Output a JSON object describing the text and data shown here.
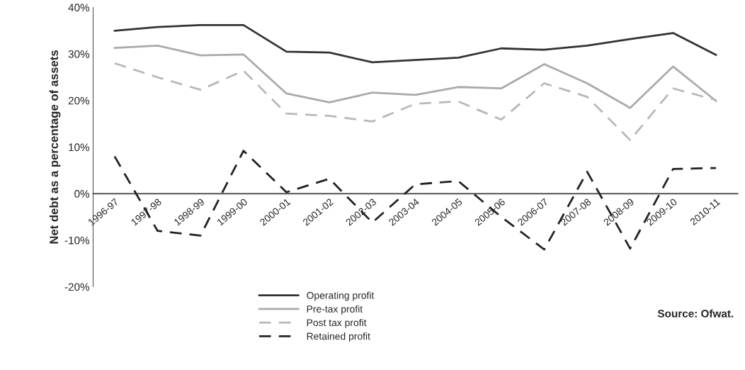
{
  "chart_data": {
    "type": "line",
    "ylabel": "Net debt as a percentage of assets",
    "categories": [
      "1996-97",
      "1997-98",
      "1998-99",
      "1999-00",
      "2000-01",
      "2001-02",
      "2002-03",
      "2003-04",
      "2004-05",
      "2005-06",
      "2006-07",
      "2007-08",
      "2008-09",
      "2009-10",
      "2010-11"
    ],
    "series": [
      {
        "name": "Operating profit",
        "color": "#333333",
        "line_style": "solid",
        "values": [
          35,
          35.8,
          36.2,
          36.2,
          30.5,
          30.3,
          28.2,
          28.7,
          29.2,
          31.2,
          30.9,
          31.8,
          33.2,
          34.5,
          29.8
        ]
      },
      {
        "name": "Pre-tax profit",
        "color": "#aaaaaa",
        "line_style": "solid",
        "values": [
          31.3,
          31.8,
          29.7,
          29.9,
          21.5,
          19.6,
          21.7,
          21.2,
          22.9,
          22.6,
          27.8,
          23.7,
          18.4,
          27.3,
          19.9
        ]
      },
      {
        "name": "Post tax profit",
        "color": "#b8b8b8",
        "line_style": "dashed",
        "values": [
          28,
          25,
          22.3,
          26.4,
          17.2,
          16.7,
          15.5,
          19.3,
          19.8,
          15.9,
          23.7,
          20.8,
          11.5,
          22.6,
          20.1
        ]
      },
      {
        "name": "Retained profit",
        "color": "#222222",
        "line_style": "dashed",
        "values": [
          8,
          -8,
          -9,
          9.2,
          0.3,
          3.2,
          -6.2,
          2,
          2.7,
          -5,
          -12,
          4.7,
          -11.8,
          5.3,
          5.5
        ]
      }
    ],
    "ylim": [
      -20,
      40
    ],
    "yticks": [
      {
        "value": -20,
        "label": "-20%"
      },
      {
        "value": -10,
        "label": "-10%"
      },
      {
        "value": 0,
        "label": "0%"
      },
      {
        "value": 10,
        "label": "10%"
      },
      {
        "value": 20,
        "label": "20%"
      },
      {
        "value": 30,
        "label": "30%"
      },
      {
        "value": 40,
        "label": "40%"
      }
    ],
    "grid": false,
    "legend": "bottom",
    "marker": "none",
    "annotations": [
      "Source: Ofwat."
    ]
  }
}
